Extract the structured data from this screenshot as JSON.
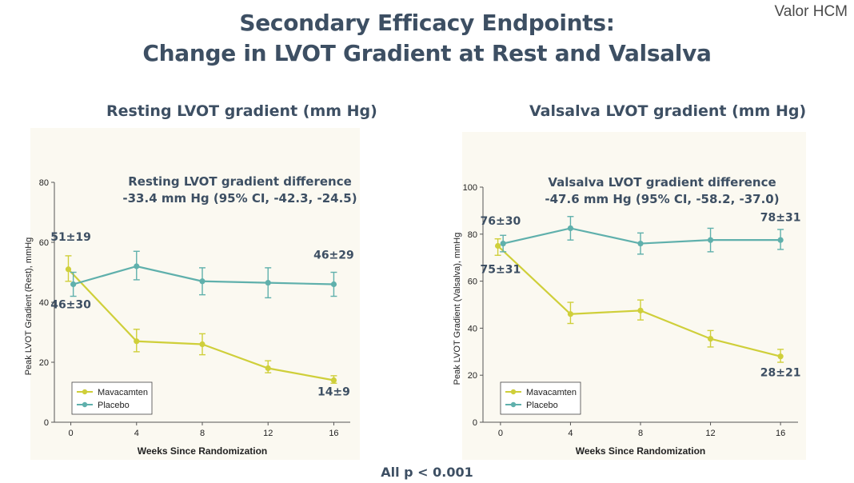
{
  "slide": {
    "title_line1": "Secondary Efficacy Endpoints:",
    "title_line2": "Change in LVOT Gradient at Rest and Valsalva",
    "logo": "Valor HCM",
    "footer": "All p < 0.001"
  },
  "colors": {
    "mavacamten": "#cfcf3a",
    "placebo": "#5fb0ac",
    "title": "#3d4f63",
    "panel_bg": "#fbf9f1"
  },
  "chart_data": [
    {
      "type": "line",
      "panel_title": "Resting LVOT gradient (mm Hg)",
      "annotation_line1": "Resting LVOT gradient difference",
      "annotation_line2": "-33.4 mm Hg (95% CI, -42.3, -24.5)",
      "xlabel": "Weeks Since Randomization",
      "ylabel": "Peak LVOT Gradient (Rest), mmHg",
      "x": [
        0,
        4,
        8,
        12,
        16
      ],
      "xlim": [
        -1,
        17
      ],
      "ylim": [
        0,
        80
      ],
      "yticks": [
        0,
        20,
        40,
        60,
        80
      ],
      "legend": "bottom-left",
      "series": [
        {
          "name": "Mavacamten",
          "values": [
            51,
            27,
            26,
            18,
            14
          ],
          "err_low": [
            47,
            23.5,
            22.5,
            16.5,
            13
          ],
          "err_high": [
            55.5,
            31,
            29.5,
            20.5,
            15.5
          ]
        },
        {
          "name": "Placebo",
          "values": [
            46,
            52,
            47,
            46.5,
            46
          ],
          "err_low": [
            42,
            47.5,
            42.5,
            41.5,
            42
          ],
          "err_high": [
            50,
            57,
            51.5,
            51.5,
            50
          ]
        }
      ],
      "labels": [
        {
          "text": "51±19",
          "x": 0,
          "y": 60.5
        },
        {
          "text": "46±30",
          "x": 0,
          "y": 38
        },
        {
          "text": "46±29",
          "x": 16,
          "y": 54.5
        },
        {
          "text": "14±9",
          "x": 16,
          "y": 9
        }
      ]
    },
    {
      "type": "line",
      "panel_title": "Valsalva LVOT gradient (mm Hg)",
      "annotation_line1": "Valsalva LVOT gradient difference",
      "annotation_line2": "-47.6 mm Hg (95% CI, -58.2, -37.0)",
      "xlabel": "Weeks Since Randomization",
      "ylabel": "Peak LVOT Gradient (Valsalva), mmHg",
      "x": [
        0,
        4,
        8,
        12,
        16
      ],
      "xlim": [
        -1,
        17
      ],
      "ylim": [
        0,
        100
      ],
      "yticks": [
        0,
        20,
        40,
        60,
        80,
        100
      ],
      "legend": "bottom-left",
      "series": [
        {
          "name": "Mavacamten",
          "values": [
            75,
            46,
            47.5,
            35.5,
            28
          ],
          "err_low": [
            71,
            42,
            43.5,
            32,
            25.5
          ],
          "err_high": [
            78,
            51,
            52,
            39,
            31
          ]
        },
        {
          "name": "Placebo",
          "values": [
            76,
            82.5,
            76,
            77.5,
            77.5
          ],
          "err_low": [
            72.5,
            77.5,
            71.5,
            72.5,
            73.5
          ],
          "err_high": [
            79.5,
            87.5,
            80.5,
            82.5,
            82
          ]
        }
      ],
      "labels": [
        {
          "text": "76±30",
          "x": 0,
          "y": 84
        },
        {
          "text": "75±31",
          "x": 0,
          "y": 63.5
        },
        {
          "text": "78±31",
          "x": 16,
          "y": 85.5
        },
        {
          "text": "28±21",
          "x": 16,
          "y": 19.5
        }
      ]
    }
  ]
}
